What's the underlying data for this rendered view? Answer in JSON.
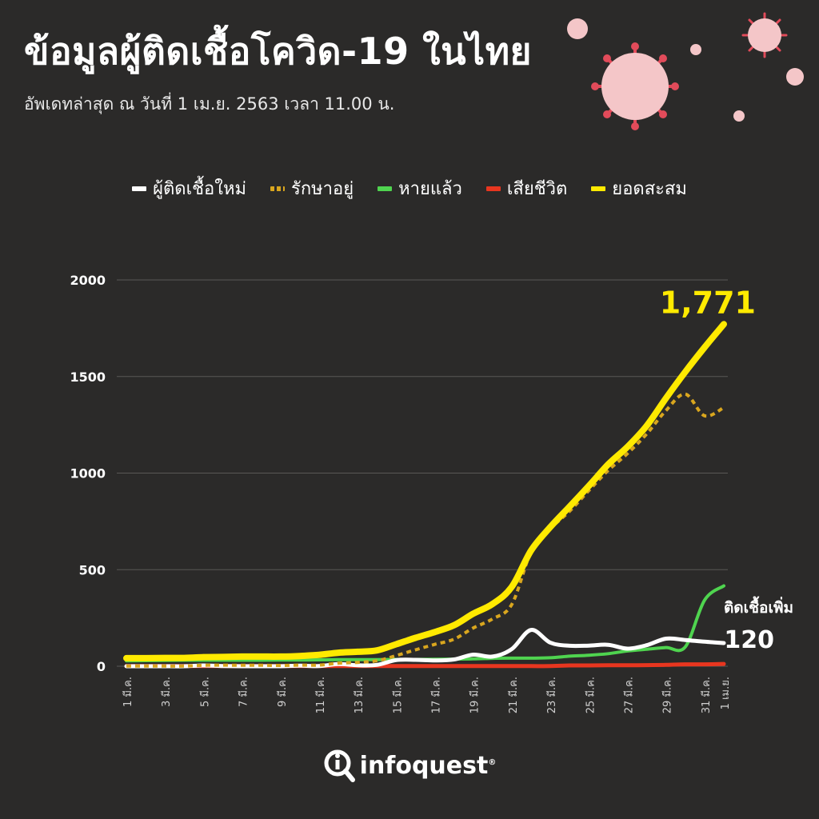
{
  "header": {
    "title": "ข้อมูลผู้ติดเชื้อโควิด-19 ในไทย",
    "subtitle": "อัพเดทล่าสุด ณ วันที่  1 เม.ย. 2563 เวลา 11.00 น."
  },
  "brand": {
    "name": "infoquest",
    "mark": "®"
  },
  "annotations": {
    "total_label": "1,771",
    "new_cases_caption": "ติดเชื้อเพิ่ม",
    "new_cases_value": "120"
  },
  "chart_data": {
    "type": "line",
    "x": [
      "1 มี.ค.",
      "2 มี.ค.",
      "3 มี.ค.",
      "4 มี.ค.",
      "5 มี.ค.",
      "6 มี.ค.",
      "7 มี.ค.",
      "8 มี.ค.",
      "9 มี.ค.",
      "10 มี.ค.",
      "11 มี.ค.",
      "12 มี.ค.",
      "13 มี.ค.",
      "14 มี.ค.",
      "15 มี.ค.",
      "16 มี.ค.",
      "17 มี.ค.",
      "18 มี.ค.",
      "19 มี.ค.",
      "20 มี.ค.",
      "21 มี.ค.",
      "22 มี.ค.",
      "23 มี.ค.",
      "24 มี.ค.",
      "25 มี.ค.",
      "26 มี.ค.",
      "27 มี.ค.",
      "28 มี.ค.",
      "29 มี.ค.",
      "30 มี.ค.",
      "31 มี.ค.",
      "1 เม.ย."
    ],
    "x_tick_labels": [
      "1 มี.ค.",
      "3 มี.ค.",
      "5 มี.ค.",
      "7 มี.ค.",
      "9 มี.ค.",
      "11 มี.ค.",
      "13 มี.ค.",
      "15 มี.ค.",
      "17 มี.ค.",
      "19 มี.ค.",
      "21 มี.ค.",
      "23 มี.ค.",
      "25 มี.ค.",
      "27 มี.ค.",
      "29 มี.ค.",
      "31 มี.ค.",
      "1 เม.ย."
    ],
    "y_ticks": [
      0,
      500,
      1000,
      1500,
      2000
    ],
    "ylim": [
      0,
      2000
    ],
    "grid": true,
    "legend_position": "top-center",
    "series": [
      {
        "name": "ผู้ติดเชื้อใหม่",
        "color": "#ffffff",
        "style": "solid",
        "values": [
          0,
          0,
          0,
          0,
          4,
          1,
          0,
          0,
          0,
          3,
          1,
          11,
          5,
          7,
          32,
          33,
          30,
          35,
          60,
          50,
          89,
          188,
          122,
          106,
          107,
          111,
          91,
          109,
          143,
          136,
          127,
          120
        ]
      },
      {
        "name": "รักษาอยู่",
        "color": "#d9a61e",
        "style": "dotted",
        "values": [
          1,
          1,
          1,
          1,
          5,
          6,
          5,
          5,
          4,
          6,
          6,
          16,
          20,
          28,
          55,
          85,
          113,
          140,
          198,
          245,
          320,
          592,
          712,
          803,
          910,
          1014,
          1101,
          1203,
          1324,
          1409,
          1297,
          1339
        ]
      },
      {
        "name": "หายแล้ว",
        "color": "#4fd44f",
        "style": "solid",
        "values": [
          28,
          29,
          30,
          31,
          31,
          31,
          31,
          31,
          32,
          32,
          33,
          34,
          34,
          34,
          35,
          35,
          36,
          37,
          38,
          41,
          42,
          42,
          44,
          52,
          57,
          65,
          79,
          88,
          97,
          100,
          342,
          416
        ]
      },
      {
        "name": "เสียชีวิต",
        "color": "#e8361f",
        "style": "solid",
        "values": [
          1,
          1,
          1,
          1,
          1,
          1,
          1,
          1,
          1,
          1,
          1,
          1,
          1,
          1,
          1,
          1,
          1,
          1,
          1,
          1,
          1,
          1,
          1,
          4,
          4,
          5,
          5,
          6,
          7,
          10,
          10,
          12
        ]
      },
      {
        "name": "ยอดสะสม",
        "color": "#ffea00",
        "style": "solid",
        "values": [
          42,
          42,
          43,
          43,
          47,
          48,
          50,
          50,
          50,
          53,
          59,
          70,
          75,
          82,
          114,
          147,
          177,
          212,
          272,
          322,
          411,
          599,
          721,
          827,
          934,
          1045,
          1136,
          1245,
          1388,
          1524,
          1651,
          1771
        ]
      }
    ]
  }
}
